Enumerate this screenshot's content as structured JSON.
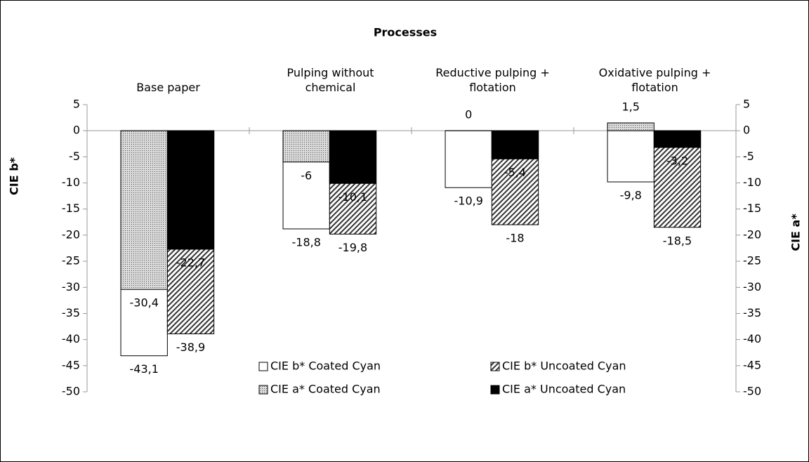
{
  "chart_data": {
    "type": "bar",
    "title": "Processes",
    "categories": [
      "Base paper",
      "Pulping without chemical",
      "Reductive pulping + flotation",
      "Oxidative pulping + flotation"
    ],
    "ylabel": "CIE b*",
    "y2label": "CIE a*",
    "ylim": [
      -50,
      5
    ],
    "yticks": [
      5,
      0,
      -5,
      -10,
      -15,
      -20,
      -25,
      -30,
      -35,
      -40,
      -45,
      -50
    ],
    "y2lim": [
      -50,
      5
    ],
    "y2ticks": [
      5,
      0,
      -5,
      -10,
      -15,
      -20,
      -25,
      -30,
      -35,
      -40,
      -45,
      -50
    ],
    "series": [
      {
        "name": "CIE b* Coated Cyan",
        "color": "#ffffff",
        "pattern": "solid",
        "values": [
          -43.1,
          -18.8,
          -10.9,
          -9.8
        ],
        "value_labels": [
          "-43,1",
          "-18,8",
          "-10,9",
          "-9,8"
        ]
      },
      {
        "name": "CIE b* Uncoated Cyan",
        "color": "#000000",
        "pattern": "hatch",
        "values": [
          -38.9,
          -19.8,
          -18,
          -18.5
        ],
        "value_labels": [
          "-38,9",
          "-19,8",
          "-18",
          "-18,5"
        ]
      },
      {
        "name": "CIE a* Coated Cyan",
        "color": "#000000",
        "pattern": "dots",
        "axis": "y2",
        "values": [
          -30.4,
          -6,
          0,
          1.5
        ],
        "value_labels": [
          "-30,4",
          "-6",
          "0",
          "1,5"
        ]
      },
      {
        "name": "CIE a* Uncoated Cyan",
        "color": "#000000",
        "pattern": "solid",
        "axis": "y2",
        "values": [
          -22.7,
          -10.1,
          -5.4,
          -3.2
        ],
        "value_labels": [
          "-22,7",
          "-10,1",
          "-5,4",
          "-3,2"
        ]
      }
    ]
  }
}
